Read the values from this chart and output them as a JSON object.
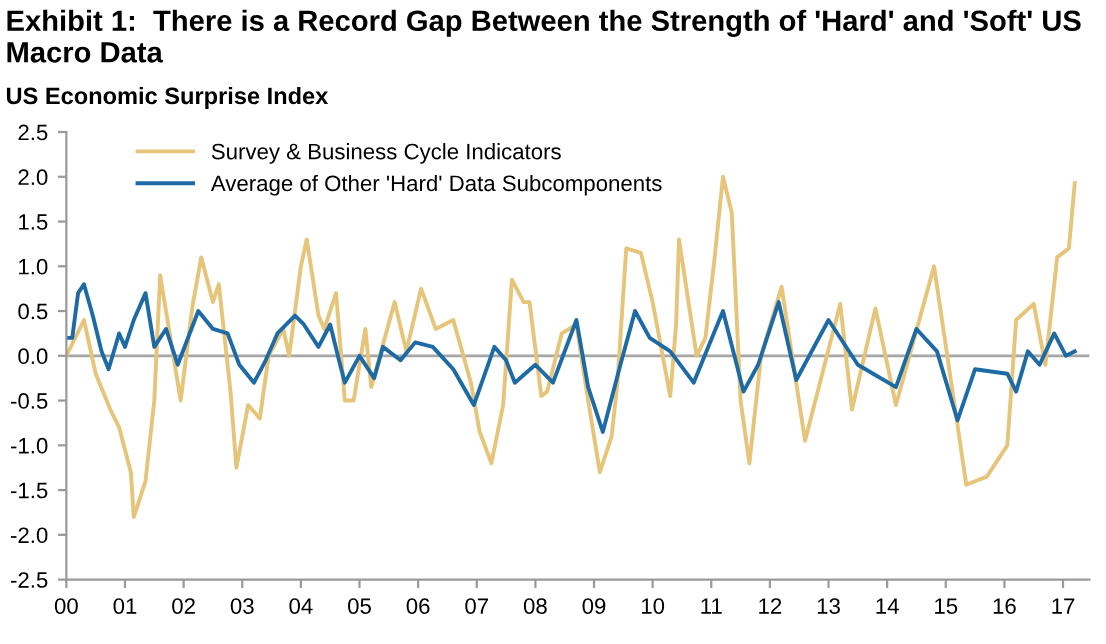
{
  "chart_data": {
    "type": "line",
    "title": "Exhibit 1:  There is a Record Gap Between the Strength of 'Hard' and 'Soft' US Macro Data",
    "subtitle": "US Economic Surprise Index",
    "series": [
      {
        "name": "Survey & Business Cycle Indicators",
        "color": "#e6c479",
        "x": [
          2000.0,
          2000.3,
          2000.5,
          2000.75,
          2000.9,
          2001.1,
          2001.15,
          2001.35,
          2001.5,
          2001.6,
          2001.75,
          2001.95,
          2002.15,
          2002.3,
          2002.5,
          2002.6,
          2002.8,
          2002.9,
          2003.1,
          2003.3,
          2003.45,
          2003.7,
          2003.8,
          2004.0,
          2004.1,
          2004.3,
          2004.4,
          2004.6,
          2004.75,
          2004.9,
          2005.1,
          2005.2,
          2005.6,
          2005.8,
          2006.05,
          2006.3,
          2006.6,
          2006.9,
          2007.05,
          2007.25,
          2007.45,
          2007.6,
          2007.8,
          2007.9,
          2008.1,
          2008.2,
          2008.45,
          2008.7,
          2008.9,
          2009.1,
          2009.3,
          2009.4,
          2009.55,
          2009.8,
          2010.0,
          2010.3,
          2010.4,
          2010.45,
          2010.75,
          2010.9,
          2011.05,
          2011.2,
          2011.35,
          2011.5,
          2011.65,
          2011.85,
          2012.2,
          2012.6,
          2013.2,
          2013.4,
          2013.8,
          2014.15,
          2014.8,
          2015.35,
          2015.7,
          2016.05,
          2016.2,
          2016.5,
          2016.7,
          2016.9,
          2017.1,
          2017.2
        ],
        "values": [
          0.0,
          0.4,
          -0.2,
          -0.6,
          -0.8,
          -1.3,
          -1.8,
          -1.4,
          -0.5,
          0.9,
          0.3,
          -0.5,
          0.55,
          1.1,
          0.6,
          0.8,
          -0.4,
          -1.25,
          -0.55,
          -0.7,
          0.0,
          0.3,
          0.0,
          1.0,
          1.3,
          0.45,
          0.3,
          0.7,
          -0.5,
          -0.5,
          0.3,
          -0.35,
          0.6,
          0.05,
          0.75,
          0.3,
          0.4,
          -0.3,
          -0.85,
          -1.2,
          -0.55,
          0.85,
          0.6,
          0.6,
          -0.45,
          -0.4,
          0.25,
          0.35,
          -0.5,
          -1.3,
          -0.9,
          -0.3,
          1.2,
          1.15,
          0.6,
          -0.45,
          0.35,
          1.3,
          0.0,
          0.2,
          1.05,
          2.0,
          1.6,
          -0.5,
          -1.2,
          0.0,
          0.77,
          -0.95,
          0.58,
          -0.6,
          0.53,
          -0.55,
          1.0,
          -1.44,
          -1.35,
          -1.0,
          0.4,
          0.58,
          -0.1,
          1.1,
          1.2,
          1.93
        ]
      },
      {
        "name": "Average of Other 'Hard' Data Subcomponents",
        "color": "#1d6aa5",
        "x": [
          2000.0,
          2000.1,
          2000.2,
          2000.3,
          2000.45,
          2000.6,
          2000.72,
          2000.9,
          2001.0,
          2001.15,
          2001.35,
          2001.5,
          2001.7,
          2001.9,
          2002.25,
          2002.5,
          2002.75,
          2002.95,
          2003.2,
          2003.4,
          2003.6,
          2003.9,
          2004.05,
          2004.3,
          2004.5,
          2004.65,
          2004.75,
          2005.0,
          2005.25,
          2005.4,
          2005.7,
          2005.95,
          2006.25,
          2006.6,
          2006.95,
          2007.3,
          2007.5,
          2007.65,
          2008.0,
          2008.3,
          2008.7,
          2008.9,
          2009.15,
          2009.45,
          2009.7,
          2009.95,
          2010.3,
          2010.7,
          2010.95,
          2011.2,
          2011.55,
          2011.8,
          2012.15,
          2012.45,
          2013.0,
          2013.5,
          2014.15,
          2014.5,
          2014.85,
          2015.2,
          2015.5,
          2016.05,
          2016.2,
          2016.4,
          2016.6,
          2016.85,
          2017.05,
          2017.2
        ],
        "values": [
          0.2,
          0.2,
          0.7,
          0.8,
          0.45,
          0.05,
          -0.15,
          0.25,
          0.1,
          0.4,
          0.7,
          0.1,
          0.3,
          -0.1,
          0.5,
          0.3,
          0.25,
          -0.1,
          -0.3,
          -0.05,
          0.25,
          0.45,
          0.35,
          0.1,
          0.35,
          -0.05,
          -0.3,
          0.0,
          -0.25,
          0.1,
          -0.05,
          0.15,
          0.1,
          -0.15,
          -0.55,
          0.1,
          -0.05,
          -0.3,
          -0.1,
          -0.3,
          0.4,
          -0.35,
          -0.85,
          -0.1,
          0.5,
          0.2,
          0.05,
          -0.3,
          0.1,
          0.5,
          -0.4,
          -0.1,
          0.6,
          -0.27,
          0.4,
          -0.1,
          -0.35,
          0.3,
          0.05,
          -0.72,
          -0.15,
          -0.2,
          -0.4,
          0.05,
          -0.1,
          0.25,
          0.0,
          0.05
        ]
      }
    ],
    "xlim": [
      2000,
      2017.45
    ],
    "xticks": [
      {
        "value": 2000,
        "label": "00"
      },
      {
        "value": 2001,
        "label": "01"
      },
      {
        "value": 2002,
        "label": "02"
      },
      {
        "value": 2003,
        "label": "03"
      },
      {
        "value": 2004,
        "label": "04"
      },
      {
        "value": 2005,
        "label": "05"
      },
      {
        "value": 2006,
        "label": "06"
      },
      {
        "value": 2007,
        "label": "07"
      },
      {
        "value": 2008,
        "label": "08"
      },
      {
        "value": 2009,
        "label": "09"
      },
      {
        "value": 2010,
        "label": "10"
      },
      {
        "value": 2011,
        "label": "11"
      },
      {
        "value": 2012,
        "label": "12"
      },
      {
        "value": 2013,
        "label": "13"
      },
      {
        "value": 2014,
        "label": "14"
      },
      {
        "value": 2015,
        "label": "15"
      },
      {
        "value": 2016,
        "label": "16"
      },
      {
        "value": 2017,
        "label": "17"
      }
    ],
    "ylim": [
      -2.5,
      2.5
    ],
    "yticks": [
      {
        "value": -2.5,
        "label": "-2.5"
      },
      {
        "value": -2.0,
        "label": "-2.0"
      },
      {
        "value": -1.5,
        "label": "-1.5"
      },
      {
        "value": -1.0,
        "label": "-1.0"
      },
      {
        "value": -0.5,
        "label": "-0.5"
      },
      {
        "value": 0.0,
        "label": "0.0"
      },
      {
        "value": 0.5,
        "label": "0.5"
      },
      {
        "value": 1.0,
        "label": "1.0"
      },
      {
        "value": 1.5,
        "label": "1.5"
      },
      {
        "value": 2.0,
        "label": "2.0"
      },
      {
        "value": 2.5,
        "label": "2.5"
      }
    ],
    "ref_lines": [
      {
        "axis": "y",
        "value": 0,
        "color": "#a6a6a6"
      }
    ],
    "grid": false,
    "legend": "top left"
  }
}
